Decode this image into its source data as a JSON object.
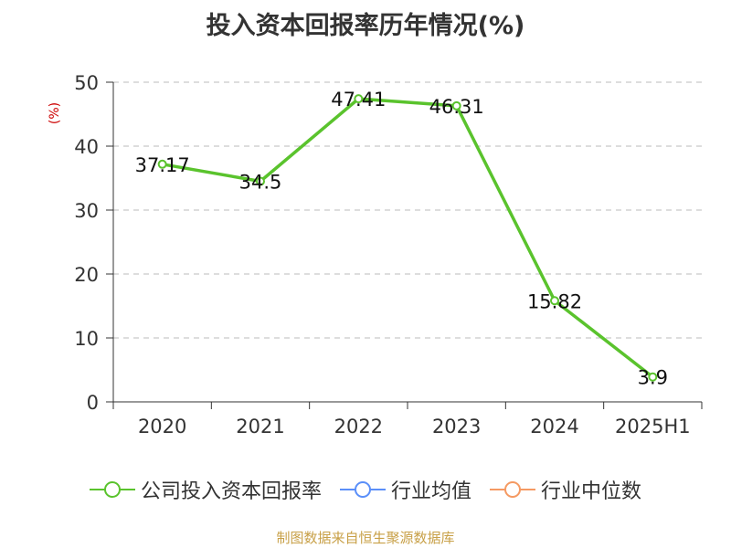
{
  "chart_data": {
    "type": "line",
    "title": "投入资本回报率历年情况(%)",
    "ylabel": "(%)",
    "categories": [
      "2020",
      "2021",
      "2022",
      "2023",
      "2024",
      "2025H1"
    ],
    "series": [
      {
        "name": "公司投入资本回报率",
        "values": [
          37.17,
          34.5,
          47.41,
          46.31,
          15.82,
          3.9
        ],
        "color": "#5ac32d"
      }
    ],
    "ylim": [
      0,
      50
    ],
    "yticks": [
      0,
      10,
      20,
      30,
      40,
      50
    ],
    "grid": true,
    "legend": [
      {
        "name": "公司投入资本回报率",
        "color": "#5ac32d"
      },
      {
        "name": "行业均值",
        "color": "#5b8ff9"
      },
      {
        "name": "行业中位数",
        "color": "#f59a63"
      }
    ],
    "legend_position": "bottom"
  },
  "source": "制图数据来自恒生聚源数据库"
}
